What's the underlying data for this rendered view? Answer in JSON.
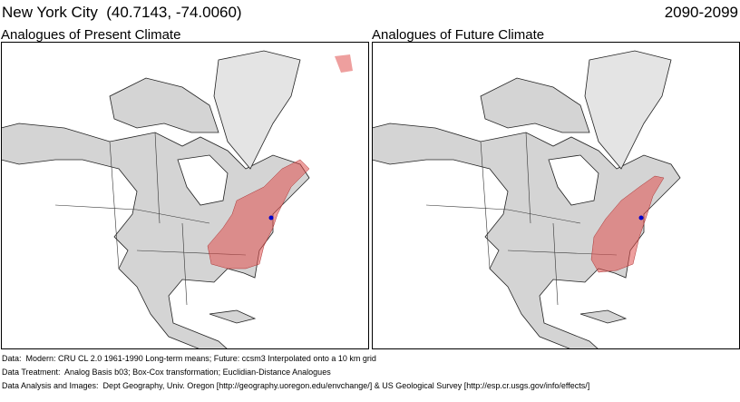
{
  "header": {
    "title": "New York City  (40.7143, -74.0060)",
    "period": "2090-2099"
  },
  "panels": [
    {
      "title": "Analogues of Present Climate"
    },
    {
      "title": "Analogues of Future Climate"
    }
  ],
  "footer": [
    "Data:  Modern: CRU CL 2.0 1961-1990 Long-term means; Future: ccsm3 Interpolated onto a 10 km grid",
    "Data Treatment:  Analog Basis b03; Box-Cox transformation; Euclidian-Distance Analogues",
    "Data Analysis and Images:  Dept Geography, Univ. Oregon [http://geography.uoregon.edu/envchange/] & US Geological Survey [http://esp.cr.usgs.gov/info/effects/]"
  ]
}
